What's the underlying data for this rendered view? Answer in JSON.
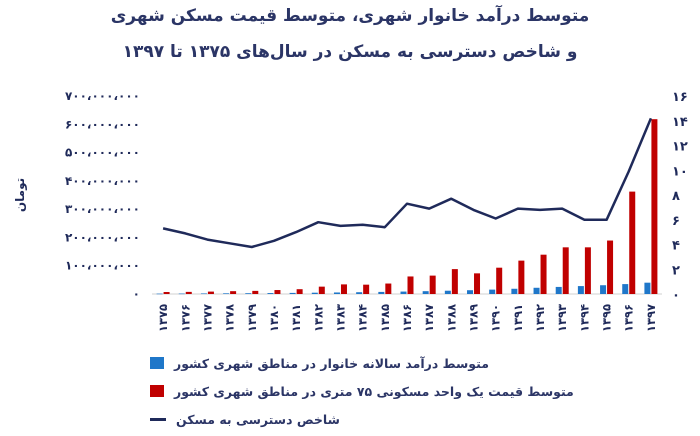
{
  "title_line1": "متوسط درآمد خانوار شهری، متوسط قیمت مسکن شهری",
  "title_line2": "و شاخص دسترسی به مسکن در سال‌های ۱۳۷۵ تا ۱۳۹۷",
  "chart_data": {
    "type": "bar",
    "categories": [
      "۱۳۷۵",
      "۱۳۷۶",
      "۱۳۷۷",
      "۱۳۷۸",
      "۱۳۷۹",
      "۱۳۸۰",
      "۱۳۸۱",
      "۱۳۸۲",
      "۱۳۸۳",
      "۱۳۸۴",
      "۱۳۸۵",
      "۱۳۸۶",
      "۱۳۸۷",
      "۱۳۸۸",
      "۱۳۸۹",
      "۱۳۹۰",
      "۱۳۹۱",
      "۱۳۹۲",
      "۱۳۹۳",
      "۱۳۹۴",
      "۱۳۹۵",
      "۱۳۹۶",
      "۱۳۹۷"
    ],
    "ylabel": "تومان",
    "ylim": [
      0,
      700000000
    ],
    "yticks": [
      "۰",
      "۱۰۰،۰۰۰،۰۰۰",
      "۲۰۰،۰۰۰،۰۰۰",
      "۳۰۰،۰۰۰،۰۰۰",
      "۴۰۰،۰۰۰،۰۰۰",
      "۵۰۰،۰۰۰،۰۰۰",
      "۶۰۰،۰۰۰،۰۰۰",
      "۷۰۰،۰۰۰،۰۰۰"
    ],
    "y2lim": [
      0,
      16
    ],
    "y2ticks": [
      "۰",
      "۲",
      "۴",
      "۶",
      "۸",
      "۱۰",
      "۱۲",
      "۱۴",
      "۱۶"
    ],
    "series": [
      {
        "name": "متوسط درآمد سالانه خانوار در مناطق شهری کشور",
        "type": "bar",
        "axis": "left",
        "color": "#1f77c9",
        "values": [
          1300000,
          1600000,
          2000000,
          2400000,
          2800000,
          3300000,
          3900000,
          4600000,
          5400000,
          6300000,
          7400000,
          8600000,
          10000000,
          11600000,
          13400000,
          15500000,
          18500000,
          22000000,
          25000000,
          28000000,
          31000000,
          35000000,
          40000000
        ]
      },
      {
        "name": "متوسط قیمت یک واحد مسکونی ۷۵ متری در مناطق شهری کشور",
        "type": "bar",
        "axis": "left",
        "color": "#c00000",
        "values": [
          7000000,
          7500000,
          8500000,
          10000000,
          11000000,
          14000000,
          17000000,
          26000000,
          34000000,
          33000000,
          37000000,
          62000000,
          65000000,
          88000000,
          73000000,
          93000000,
          118000000,
          139000000,
          165000000,
          165000000,
          189000000,
          362000000,
          618000000
        ]
      },
      {
        "name": "شاخص دسترسی به مسکن",
        "type": "line",
        "axis": "right",
        "color": "#1f2a5a",
        "values": [
          5.3,
          4.9,
          4.4,
          4.1,
          3.8,
          4.3,
          5.0,
          5.8,
          5.5,
          5.6,
          5.4,
          7.3,
          6.9,
          7.7,
          6.8,
          6.1,
          6.9,
          6.8,
          6.9,
          6.0,
          6.0,
          9.9,
          14.2
        ]
      }
    ]
  }
}
